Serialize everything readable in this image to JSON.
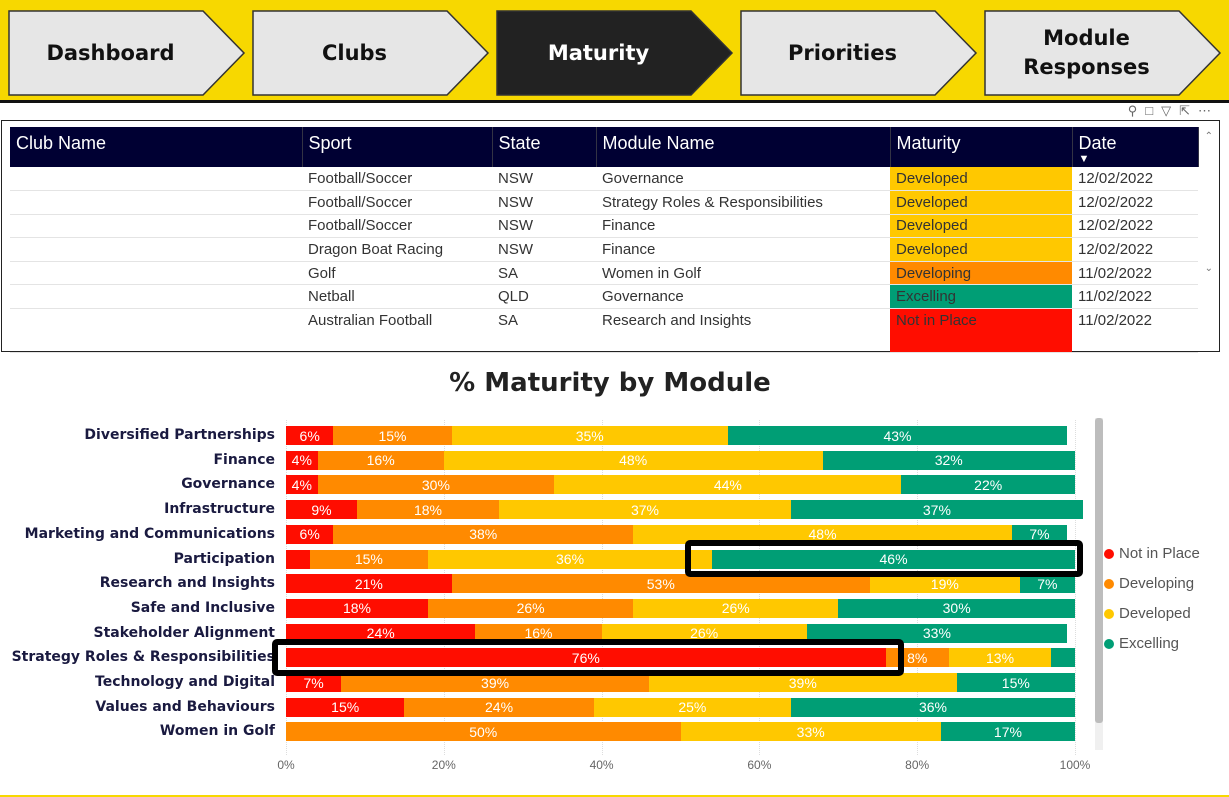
{
  "nav": {
    "tabs": [
      {
        "label": "Dashboard"
      },
      {
        "label": "Clubs"
      },
      {
        "label": "Maturity",
        "active": true
      },
      {
        "label": "Priorities"
      },
      {
        "label": "Module Responses"
      }
    ]
  },
  "table": {
    "headers": [
      "Club Name",
      "Sport",
      "State",
      "Module Name",
      "Maturity",
      "Date"
    ],
    "rows": [
      [
        "",
        "Football/Soccer",
        "NSW",
        "Governance",
        "Developed",
        "12/02/2022"
      ],
      [
        "",
        "Football/Soccer",
        "NSW",
        "Strategy Roles & Responsibilities",
        "Developed",
        "12/02/2022"
      ],
      [
        "",
        "Football/Soccer",
        "NSW",
        "Finance",
        "Developed",
        "12/02/2022"
      ],
      [
        "",
        "Dragon Boat Racing",
        "NSW",
        "Finance",
        "Developed",
        "12/02/2022"
      ],
      [
        "",
        "Golf",
        "SA",
        "Women in Golf",
        "Developing",
        "11/02/2022"
      ],
      [
        "",
        "Netball",
        "QLD",
        "Governance",
        "Excelling",
        "11/02/2022"
      ],
      [
        "",
        "Australian Football",
        "SA",
        "Research and Insights",
        "Not in Place",
        "11/02/2022"
      ]
    ]
  },
  "colors": {
    "Not in Place": "#ff0d00",
    "Developing": "#ff8a00",
    "Developed": "#ffc800",
    "Excelling": "#009e75",
    "header": "#000033",
    "nav": "#f7d800"
  },
  "chart_data": {
    "type": "bar",
    "stacked": "100%",
    "orientation": "horizontal",
    "title": "% Maturity by Module",
    "categories": [
      "Diversified Partnerships",
      "Finance",
      "Governance",
      "Infrastructure",
      "Marketing and Communications",
      "Participation",
      "Research and Insights",
      "Safe and Inclusive",
      "Stakeholder Alignment",
      "Strategy Roles & Responsibilities",
      "Technology and Digital",
      "Values and Behaviours",
      "Women in Golf"
    ],
    "series": [
      {
        "name": "Not in Place",
        "values": [
          6,
          4,
          4,
          9,
          6,
          3,
          21,
          18,
          24,
          76,
          7,
          15,
          0
        ]
      },
      {
        "name": "Developing",
        "values": [
          15,
          16,
          30,
          18,
          38,
          15,
          53,
          26,
          16,
          8,
          39,
          24,
          50
        ]
      },
      {
        "name": "Developed",
        "values": [
          35,
          48,
          44,
          37,
          48,
          36,
          19,
          26,
          26,
          13,
          39,
          25,
          33
        ]
      },
      {
        "name": "Excelling",
        "values": [
          43,
          32,
          22,
          37,
          7,
          46,
          7,
          30,
          33,
          3,
          15,
          36,
          17
        ]
      }
    ],
    "xticks": [
      "0%",
      "20%",
      "40%",
      "60%",
      "80%",
      "100%"
    ],
    "xlim": [
      0,
      100
    ],
    "legend": "right",
    "highlighted": [
      "Participation - Excelling",
      "Strategy Roles & Responsibilities - Not in Place"
    ]
  }
}
